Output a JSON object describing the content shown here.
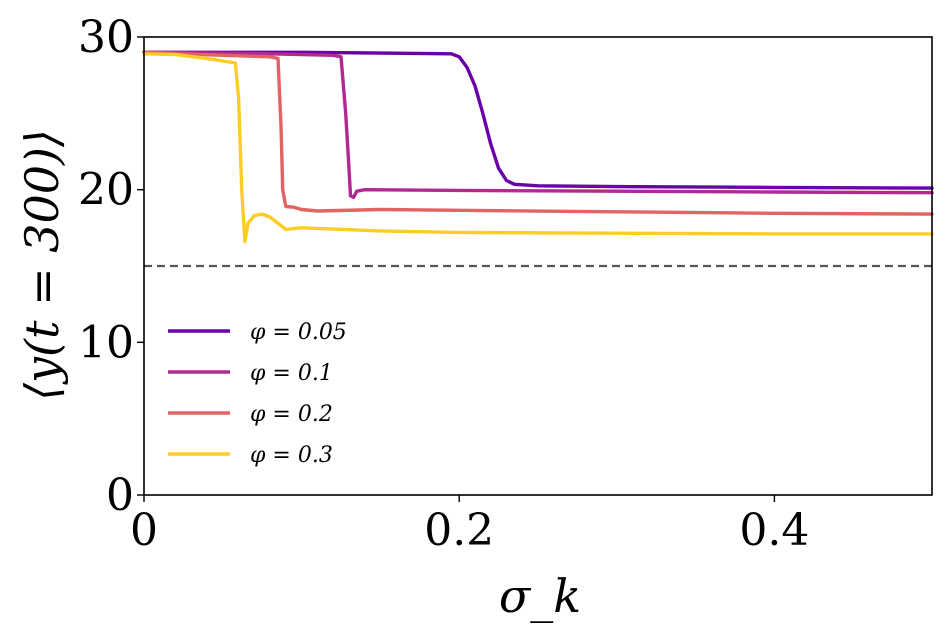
{
  "chart_data": {
    "type": "line",
    "xlabel": "σ_k",
    "ylabel": "⟨y(t = 300)⟩",
    "xlim": [
      0,
      0.5
    ],
    "ylim": [
      0,
      30
    ],
    "x_ticks": [
      0,
      0.2,
      0.4
    ],
    "x_tick_labels": [
      "0",
      "0.2",
      "0.4"
    ],
    "y_ticks": [
      0,
      10,
      20,
      30
    ],
    "y_tick_labels": [
      "0",
      "10",
      "20",
      "30"
    ],
    "grid": false,
    "legend_position": "lower-left",
    "reference_line": {
      "y": 15,
      "style": "dashed",
      "color": "#555555"
    },
    "series": [
      {
        "name": "φ = 0.05",
        "color": "#6a00a8",
        "points": [
          [
            0,
            29.0
          ],
          [
            0.1,
            29.0
          ],
          [
            0.195,
            28.9
          ],
          [
            0.2,
            28.7
          ],
          [
            0.205,
            28.0
          ],
          [
            0.21,
            26.8
          ],
          [
            0.215,
            25.0
          ],
          [
            0.22,
            23.0
          ],
          [
            0.225,
            21.4
          ],
          [
            0.23,
            20.6
          ],
          [
            0.235,
            20.35
          ],
          [
            0.25,
            20.25
          ],
          [
            0.3,
            20.2
          ],
          [
            0.4,
            20.15
          ],
          [
            0.5,
            20.1
          ]
        ]
      },
      {
        "name": "φ = 0.1",
        "color": "#b12a90",
        "points": [
          [
            0,
            29.0
          ],
          [
            0.08,
            28.9
          ],
          [
            0.12,
            28.8
          ],
          [
            0.125,
            28.7
          ],
          [
            0.128,
            25.0
          ],
          [
            0.13,
            21.5
          ],
          [
            0.131,
            19.6
          ],
          [
            0.133,
            19.5
          ],
          [
            0.135,
            19.9
          ],
          [
            0.14,
            20.0
          ],
          [
            0.2,
            19.95
          ],
          [
            0.3,
            19.9
          ],
          [
            0.4,
            19.85
          ],
          [
            0.5,
            19.8
          ]
        ]
      },
      {
        "name": "φ = 0.2",
        "color": "#e16462",
        "points": [
          [
            0,
            29.0
          ],
          [
            0.05,
            28.8
          ],
          [
            0.08,
            28.7
          ],
          [
            0.085,
            28.6
          ],
          [
            0.087,
            24.0
          ],
          [
            0.088,
            20.0
          ],
          [
            0.09,
            18.9
          ],
          [
            0.095,
            18.85
          ],
          [
            0.1,
            18.7
          ],
          [
            0.11,
            18.6
          ],
          [
            0.15,
            18.7
          ],
          [
            0.2,
            18.65
          ],
          [
            0.3,
            18.55
          ],
          [
            0.4,
            18.45
          ],
          [
            0.5,
            18.4
          ]
        ]
      },
      {
        "name": "φ = 0.3",
        "color": "#fccd25",
        "points": [
          [
            0,
            28.9
          ],
          [
            0.02,
            28.85
          ],
          [
            0.04,
            28.6
          ],
          [
            0.058,
            28.3
          ],
          [
            0.06,
            26.0
          ],
          [
            0.062,
            20.0
          ],
          [
            0.064,
            16.6
          ],
          [
            0.066,
            17.8
          ],
          [
            0.07,
            18.3
          ],
          [
            0.075,
            18.4
          ],
          [
            0.08,
            18.2
          ],
          [
            0.09,
            17.4
          ],
          [
            0.1,
            17.5
          ],
          [
            0.15,
            17.3
          ],
          [
            0.2,
            17.2
          ],
          [
            0.3,
            17.15
          ],
          [
            0.4,
            17.1
          ],
          [
            0.5,
            17.1
          ]
        ]
      }
    ]
  }
}
